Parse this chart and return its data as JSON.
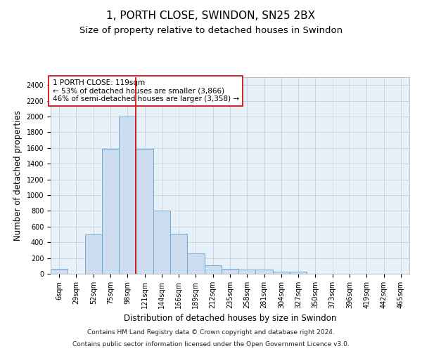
{
  "title": "1, PORTH CLOSE, SWINDON, SN25 2BX",
  "subtitle": "Size of property relative to detached houses in Swindon",
  "xlabel": "Distribution of detached houses by size in Swindon",
  "ylabel": "Number of detached properties",
  "footer_line1": "Contains HM Land Registry data © Crown copyright and database right 2024.",
  "footer_line2": "Contains public sector information licensed under the Open Government Licence v3.0.",
  "categories": [
    "6sqm",
    "29sqm",
    "52sqm",
    "75sqm",
    "98sqm",
    "121sqm",
    "144sqm",
    "166sqm",
    "189sqm",
    "212sqm",
    "235sqm",
    "258sqm",
    "281sqm",
    "304sqm",
    "327sqm",
    "350sqm",
    "373sqm",
    "396sqm",
    "419sqm",
    "442sqm",
    "465sqm"
  ],
  "values": [
    60,
    0,
    500,
    1590,
    2000,
    1590,
    800,
    510,
    260,
    110,
    60,
    50,
    50,
    30,
    30,
    0,
    0,
    0,
    0,
    0,
    0
  ],
  "bar_color": "#ccddf0",
  "bar_edge_color": "#6aaad4",
  "vline_x": 4.5,
  "vline_color": "#cc0000",
  "annotation_text": "1 PORTH CLOSE: 119sqm\n← 53% of detached houses are smaller (3,866)\n46% of semi-detached houses are larger (3,358) →",
  "annotation_box_color": "#ffffff",
  "annotation_box_edge_color": "#cc0000",
  "ylim": [
    0,
    2500
  ],
  "yticks": [
    0,
    200,
    400,
    600,
    800,
    1000,
    1200,
    1400,
    1600,
    1800,
    2000,
    2200,
    2400
  ],
  "plot_bg_color": "#e8f0f8",
  "background_color": "#ffffff",
  "grid_color": "#c0cfe0",
  "title_fontsize": 11,
  "subtitle_fontsize": 9.5,
  "axis_label_fontsize": 8.5,
  "tick_fontsize": 7,
  "annotation_fontsize": 7.5,
  "footer_fontsize": 6.5
}
